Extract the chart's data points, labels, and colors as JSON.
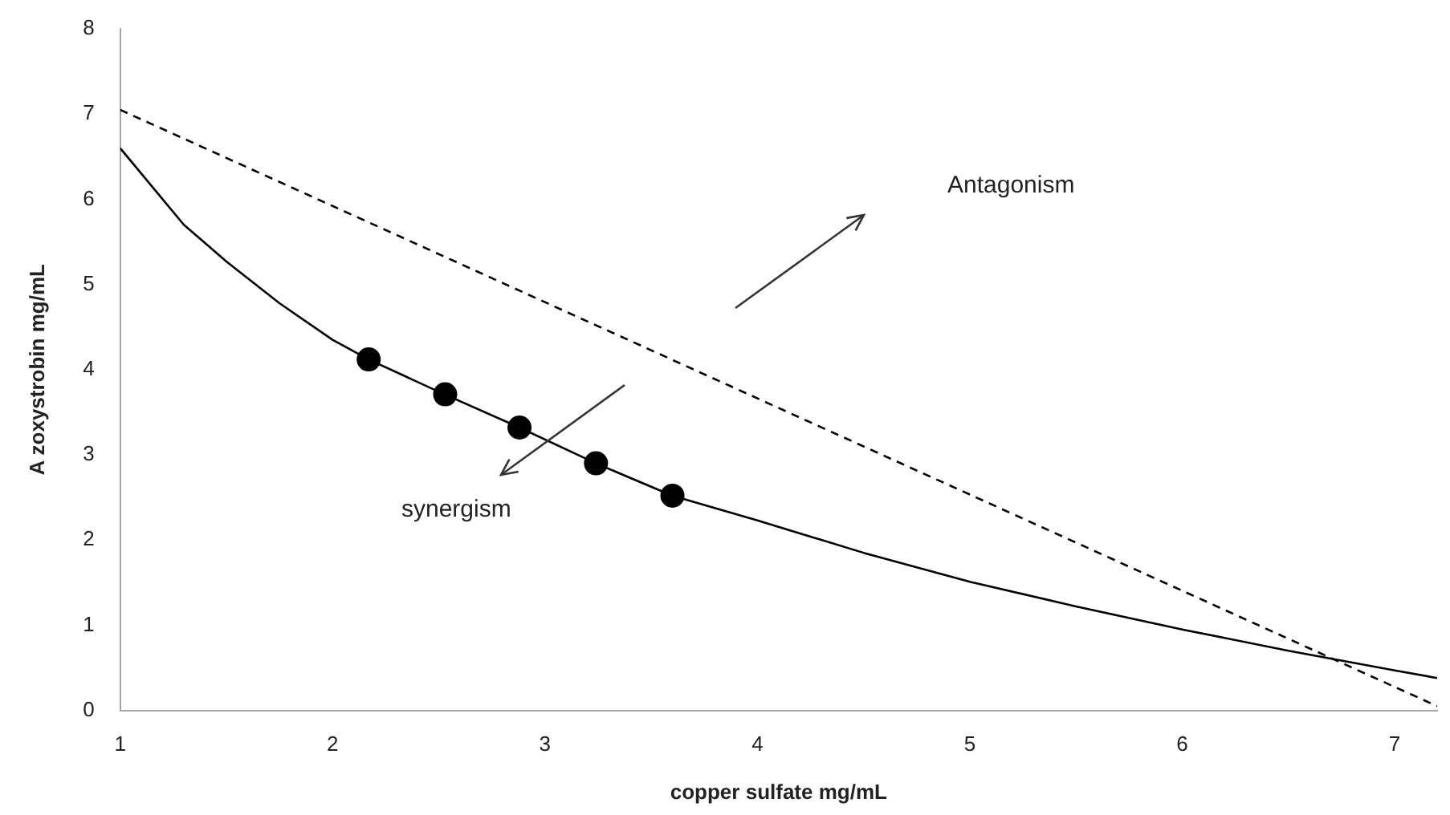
{
  "chart_data": {
    "type": "line",
    "xlabel": "copper sulfate mg/mL",
    "ylabel": "A zoxystrobin mg/mL",
    "xlim": [
      1,
      7.2
    ],
    "xticks": [
      1,
      2,
      3,
      4,
      5,
      6,
      7
    ],
    "ylim": [
      0,
      8
    ],
    "yticks": [
      0,
      1,
      2,
      3,
      4,
      5,
      6,
      7,
      8
    ],
    "grid": false,
    "legend": false,
    "annotations": [
      "Antagonism",
      "synergism"
    ],
    "series": [
      {
        "type": "line",
        "color": "#000000",
        "line_style": "solid",
        "marker": "none",
        "x": [
          1,
          1.3,
          1.5,
          1.75,
          2,
          2.17,
          2.5,
          2.88,
          3.24,
          3.6,
          4,
          4.5,
          5,
          5.5,
          6,
          6.5,
          7,
          7.2
        ],
        "values": [
          6.6,
          5.7,
          5.27,
          4.78,
          4.35,
          4.12,
          3.74,
          3.32,
          2.9,
          2.52,
          2.23,
          1.85,
          1.51,
          1.22,
          0.95,
          0.7,
          0.47,
          0.38
        ]
      },
      {
        "type": "line",
        "color": "#000000",
        "line_style": "dashed",
        "marker": "none",
        "x": [
          1,
          7.2
        ],
        "values": [
          7.05,
          0.05
        ]
      },
      {
        "type": "scatter",
        "color": "#000000",
        "marker": "circle",
        "x": [
          2.17,
          2.53,
          2.88,
          3.24,
          3.6
        ],
        "values": [
          4.12,
          3.71,
          3.32,
          2.9,
          2.52
        ]
      }
    ]
  }
}
